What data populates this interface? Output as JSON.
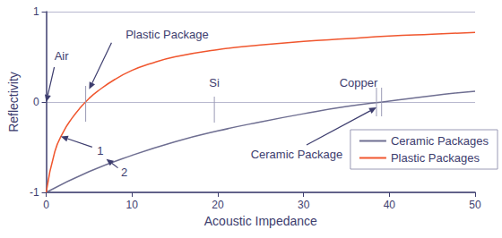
{
  "chart_data": {
    "type": "line",
    "x_label": "Acoustic Impedance",
    "y_label": "Reflectivity",
    "xlim": [
      0,
      50
    ],
    "xticks": [
      0,
      10,
      20,
      30,
      40,
      50
    ],
    "ylim": [
      -1,
      1
    ],
    "yticks": [
      -1,
      0,
      1
    ],
    "grid": true,
    "legend": "right",
    "series": [
      {
        "name": "Ceramic Packages",
        "color": "#6e6e91",
        "x": [
          0,
          5,
          10,
          15,
          20,
          25,
          30,
          35,
          40,
          45,
          50
        ],
        "values": [
          -1,
          -0.77,
          -0.59,
          -0.44,
          -0.32,
          -0.22,
          -0.13,
          -0.05,
          0.01,
          0.07,
          0.12
        ]
      },
      {
        "name": "Plastic Packages",
        "color": "#f0562e",
        "x": [
          0,
          1,
          2,
          3,
          4,
          5,
          6,
          8,
          10,
          12,
          15,
          20,
          25,
          30,
          35,
          40,
          45,
          50
        ],
        "values": [
          -1,
          -0.55,
          -0.33,
          -0.18,
          -0.06,
          0.04,
          0.12,
          0.25,
          0.35,
          0.42,
          0.5,
          0.58,
          0.63,
          0.67,
          0.7,
          0.73,
          0.75,
          0.77
        ]
      }
    ],
    "markers": [
      {
        "x": 4.6
      },
      {
        "x": 19.6,
        "label": "Si"
      },
      {
        "x": 38.5,
        "label": "Copper"
      },
      {
        "x": 39.1
      }
    ],
    "annotations": [
      {
        "text": "Air",
        "x": 0,
        "y": 0
      },
      {
        "text": "Plastic Package",
        "x": 5,
        "y": 0.14
      },
      {
        "text": "1",
        "x": 1.7,
        "y": -0.38
      },
      {
        "text": "2",
        "x": 7,
        "y": -0.63
      },
      {
        "text": "Ceramic Package",
        "x": 38.5,
        "y": -0.06
      }
    ]
  }
}
